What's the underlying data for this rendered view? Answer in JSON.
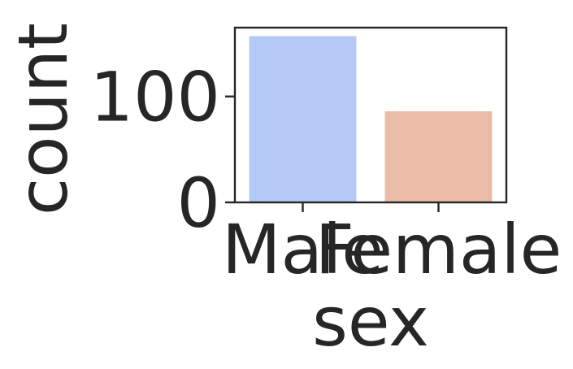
{
  "chart_data": {
    "type": "bar",
    "categories": [
      "Male",
      "Female"
    ],
    "values": [
      157,
      86
    ],
    "colors": [
      "#b4c9f3",
      "#eabca7"
    ],
    "xlabel": "sex",
    "ylabel": "count",
    "ylim": [
      0,
      165
    ],
    "yticks": [
      0,
      100
    ],
    "grid": false,
    "legend": "none"
  }
}
